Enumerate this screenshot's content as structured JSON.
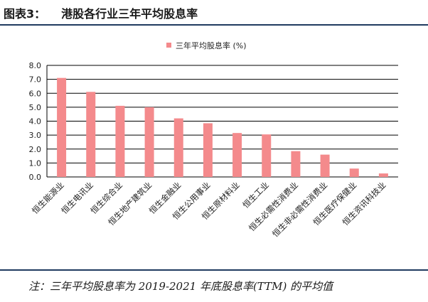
{
  "figure": {
    "label": "图表3：",
    "title": "港股各行业三年平均股息率",
    "footnote": "注：三年平均股息率为 2019-2021 年底股息率(TTM) 的平均值"
  },
  "colors": {
    "bar": "#f48a8c",
    "gridline": "#000000",
    "rule": "#1f3a5f"
  },
  "chart_data": {
    "type": "bar",
    "title": "",
    "xlabel": "",
    "ylabel": "",
    "legend": {
      "position": "top-center"
    },
    "grid": true,
    "ylim": [
      0,
      8
    ],
    "yticks": [
      "0.0",
      "1.0",
      "2.0",
      "3.0",
      "4.0",
      "5.0",
      "6.0",
      "7.0",
      "8.0"
    ],
    "categories": [
      "恒生能源业",
      "恒生电讯业",
      "恒生综合业",
      "恒生地产建筑业",
      "恒生金融业",
      "恒生公用事业",
      "恒生原材料业",
      "恒生工业",
      "恒生必需性消费业",
      "恒生非必需性消费业",
      "恒生医疗保健业",
      "恒生资讯科技业"
    ],
    "series": [
      {
        "name": "三年平均股息率 (%)",
        "values": [
          7.1,
          6.1,
          5.1,
          5.0,
          4.2,
          3.85,
          3.15,
          3.05,
          1.85,
          1.6,
          0.6,
          0.25
        ]
      }
    ]
  }
}
